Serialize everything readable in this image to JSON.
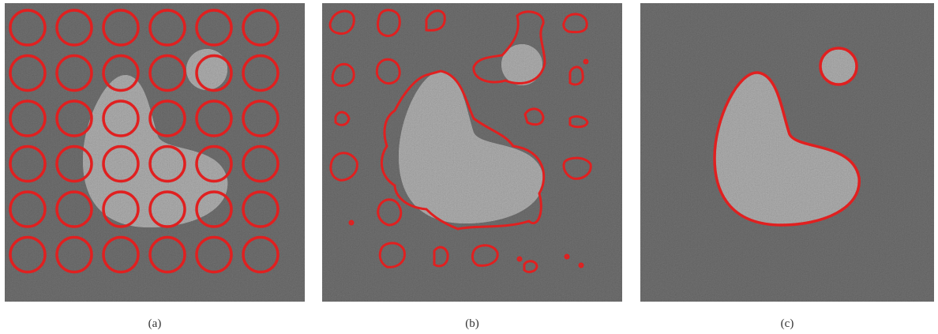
{
  "panels": [
    {
      "caption": "(a)"
    },
    {
      "caption": "(b)"
    },
    {
      "caption": "(c)"
    }
  ]
}
